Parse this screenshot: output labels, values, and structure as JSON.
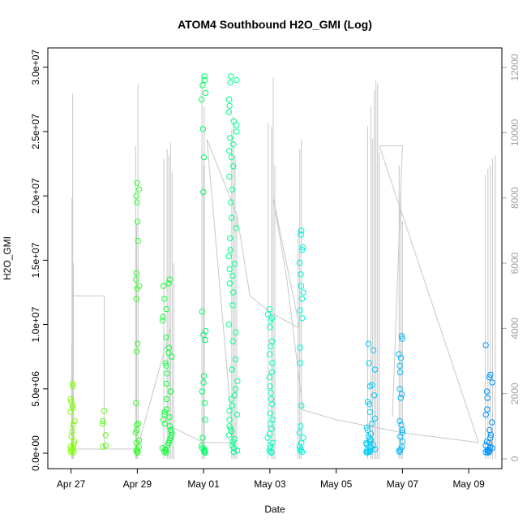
{
  "chart_data": {
    "type": "scatter",
    "title": "ATOM4 Southbound H2O_GMI (Log)",
    "xlabel": "Date",
    "ylabel": "H2O_GMI",
    "x_ticks": [
      "Apr 27",
      "Apr 29",
      "May 01",
      "May 03",
      "May 05",
      "May 07",
      "May 09"
    ],
    "x_tick_days": [
      0,
      2,
      4,
      6,
      8,
      10,
      12
    ],
    "xlim_days": [
      -0.7,
      13.0
    ],
    "ylim": [
      -1200000,
      31500000
    ],
    "y_ticks": [
      0,
      5000000,
      10000000,
      15000000,
      20000000,
      25000000,
      30000000
    ],
    "y_tick_labels": [
      "0.0e+00",
      "5.0e+06",
      "1.0e+07",
      "1.5e+07",
      "2.0e+07",
      "2.5e+07",
      "3.0e+07"
    ],
    "y2lim": [
      -300,
      12600
    ],
    "y2_ticks": [
      0,
      2000,
      4000,
      6000,
      8000,
      10000,
      12000
    ],
    "y2_tick_labels": [
      "0",
      "2000",
      "4000",
      "6000",
      "8000",
      "10000",
      "12000"
    ],
    "colors": {
      "axis": "#000000",
      "line": "#c8c8c8",
      "y2axis": "#a0a0a0"
    },
    "series": [
      {
        "kind": "secondary_spikes",
        "color": "#c8c8c8",
        "points": [
          [
            0.05,
            11200
          ],
          [
            0.03,
            8000
          ],
          [
            0.02,
            3500
          ],
          [
            0.07,
            6000
          ],
          [
            1.95,
            9600
          ],
          [
            2.02,
            11500
          ],
          [
            1.98,
            7200
          ],
          [
            2.8,
            9200
          ],
          [
            2.9,
            9500
          ],
          [
            2.95,
            9300
          ],
          [
            3.0,
            9700
          ],
          [
            3.05,
            8800
          ],
          [
            3.1,
            6000
          ],
          [
            3.95,
            11800
          ],
          [
            4.02,
            10800
          ],
          [
            4.0,
            9000
          ],
          [
            4.85,
            10100
          ],
          [
            4.9,
            10500
          ],
          [
            4.95,
            9300
          ],
          [
            5.0,
            7500
          ],
          [
            5.95,
            10300
          ],
          [
            6.05,
            10200
          ],
          [
            6.1,
            11700
          ],
          [
            6.15,
            9000
          ],
          [
            6.9,
            9500
          ],
          [
            6.95,
            9800
          ],
          [
            6.85,
            7000
          ],
          [
            8.95,
            10200
          ],
          [
            9.05,
            10800
          ],
          [
            9.1,
            9800
          ],
          [
            9.15,
            11300
          ],
          [
            9.2,
            11600
          ],
          [
            9.25,
            11500
          ],
          [
            9.3,
            9400
          ],
          [
            9.9,
            9000
          ],
          [
            9.95,
            8200
          ],
          [
            10.0,
            7300
          ],
          [
            12.5,
            8700
          ],
          [
            12.58,
            8900
          ],
          [
            12.65,
            9000
          ],
          [
            12.72,
            9200
          ],
          [
            12.8,
            9300
          ]
        ]
      },
      {
        "kind": "secondary_track",
        "color": "#c8c8c8",
        "points": [
          [
            0.0,
            5000
          ],
          [
            1.0,
            5000
          ],
          [
            1.0,
            300
          ],
          [
            0.0,
            300
          ],
          [
            2.0,
            300
          ],
          [
            3.0,
            4000
          ],
          [
            3.0,
            1000
          ],
          [
            4.0,
            500
          ],
          [
            4.9,
            500
          ],
          [
            4.1,
            9800
          ],
          [
            5.0,
            7500
          ],
          [
            5.4,
            5000
          ],
          [
            6.0,
            4500
          ],
          [
            6.9,
            4000
          ],
          [
            6.1,
            8000
          ],
          [
            6.5,
            5600
          ],
          [
            7.0,
            1500
          ],
          [
            8.0,
            1200
          ],
          [
            9.0,
            1000
          ],
          [
            10.0,
            800
          ],
          [
            12.3,
            500
          ],
          [
            9.3,
            9600
          ],
          [
            10.0,
            9600
          ],
          [
            9.7,
            1300
          ]
        ]
      },
      {
        "kind": "primary_scatter",
        "colorscale": [
          "#80ff00",
          "#00ff40",
          "#00ffd0",
          "#00c0ff",
          "#0090ff"
        ],
        "groups": [
          {
            "x_center": 0.05,
            "x_spread": 0.08,
            "values": [
              5400000,
              5200000,
              4200000,
              4000000,
              3700000,
              3500000,
              3200000,
              2500000,
              2200000,
              1700000,
              1300000,
              900000,
              700000,
              500000,
              400000,
              300000,
              200000,
              100000,
              50000
            ]
          },
          {
            "x_center": 1.0,
            "x_spread": 0.05,
            "values": [
              3300000,
              2500000,
              2300000,
              1400000,
              600000,
              500000
            ]
          },
          {
            "x_center": 2.0,
            "x_spread": 0.06,
            "values": [
              21000000,
              20500000,
              20000000,
              19500000,
              18000000,
              16500000,
              14000000,
              13500000,
              13000000,
              12800000,
              12000000,
              8500000,
              7900000,
              3900000,
              2300000,
              2200000,
              1800000,
              1600000,
              1000000,
              800000,
              500000,
              300000,
              200000,
              100000,
              50000
            ]
          },
          {
            "x_center": 2.9,
            "x_spread": 0.15,
            "values": [
              13500000,
              13200000,
              13000000,
              12000000,
              11200000,
              10600000,
              10300000,
              9000000,
              8200000,
              7800000,
              7500000,
              7000000,
              6800000,
              6200000,
              5400000,
              4800000,
              4200000,
              3400000,
              3200000,
              3000000,
              2800000,
              2600000,
              2300000,
              2100000,
              1800000,
              1600000,
              1400000,
              1200000,
              1000000,
              800000,
              600000,
              400000,
              300000,
              200000,
              100000,
              50000
            ]
          },
          {
            "x_center": 4.0,
            "x_spread": 0.06,
            "values": [
              29300000,
              29000000,
              28600000,
              28000000,
              27500000,
              25200000,
              23000000,
              20300000,
              11000000,
              9500000,
              9200000,
              8800000,
              6000000,
              5500000,
              4800000,
              3900000,
              2600000,
              1200000,
              600000,
              400000,
              300000,
              200000,
              100000,
              50000
            ]
          },
          {
            "x_center": 4.9,
            "x_spread": 0.14,
            "values": [
              29300000,
              29000000,
              28800000,
              27500000,
              27000000,
              26500000,
              25800000,
              25500000,
              25000000,
              24500000,
              24000000,
              23500000,
              23000000,
              22300000,
              21500000,
              20500000,
              19500000,
              18300000,
              17500000,
              16700000,
              15800000,
              15300000,
              14700000,
              14300000,
              13800000,
              13200000,
              12500000,
              11500000,
              10000000,
              9400000,
              8700000,
              7300000,
              6500000,
              5600000,
              5000000,
              4500000,
              4200000,
              3700000,
              3300000,
              3000000,
              2600000,
              2100000,
              1900000,
              1700000,
              1400000,
              1100000,
              900000,
              600000,
              400000,
              200000,
              100000
            ]
          },
          {
            "x_center": 6.0,
            "x_spread": 0.08,
            "values": [
              11200000,
              10800000,
              10500000,
              10300000,
              9800000,
              8700000,
              8300000,
              7700000,
              7000000,
              6300000,
              5900000,
              5200000,
              4700000,
              4200000,
              3800000,
              3100000,
              2600000,
              2300000,
              1900000,
              1500000,
              1200000,
              800000,
              600000,
              400000,
              200000,
              100000,
              50000
            ]
          },
          {
            "x_center": 6.95,
            "x_spread": 0.06,
            "values": [
              17300000,
              17000000,
              16000000,
              15800000,
              14800000,
              13900000,
              13000000,
              12500000,
              12000000,
              11100000,
              10500000,
              8200000,
              7000000,
              3700000,
              2100000,
              1600000,
              1200000,
              800000,
              500000,
              300000,
              200000,
              100000
            ]
          },
          {
            "x_center": 9.05,
            "x_spread": 0.15,
            "values": [
              8500000,
              8000000,
              7000000,
              6500000,
              5300000,
              5200000,
              4500000,
              4000000,
              3800000,
              3200000,
              2700000,
              2300000,
              2000000,
              1800000,
              1500000,
              1300000,
              1100000,
              1000000,
              900000,
              800000,
              700000,
              600000,
              500000,
              400000,
              300000,
              250000,
              200000,
              150000,
              100000,
              80000,
              50000
            ]
          },
          {
            "x_center": 9.95,
            "x_spread": 0.06,
            "values": [
              9100000,
              8900000,
              7700000,
              7400000,
              6800000,
              6300000,
              5000000,
              4600000,
              4300000,
              2500000,
              2200000,
              1800000,
              1600000,
              1300000,
              900000,
              500000,
              300000,
              200000,
              100000
            ]
          },
          {
            "x_center": 12.6,
            "x_spread": 0.12,
            "values": [
              8400000,
              6100000,
              5900000,
              5500000,
              4800000,
              4300000,
              3400000,
              3000000,
              2400000,
              1800000,
              1400000,
              1200000,
              900000,
              800000,
              600000,
              500000,
              400000,
              300000,
              250000,
              200000,
              150000,
              100000,
              80000,
              50000
            ]
          }
        ]
      }
    ]
  }
}
